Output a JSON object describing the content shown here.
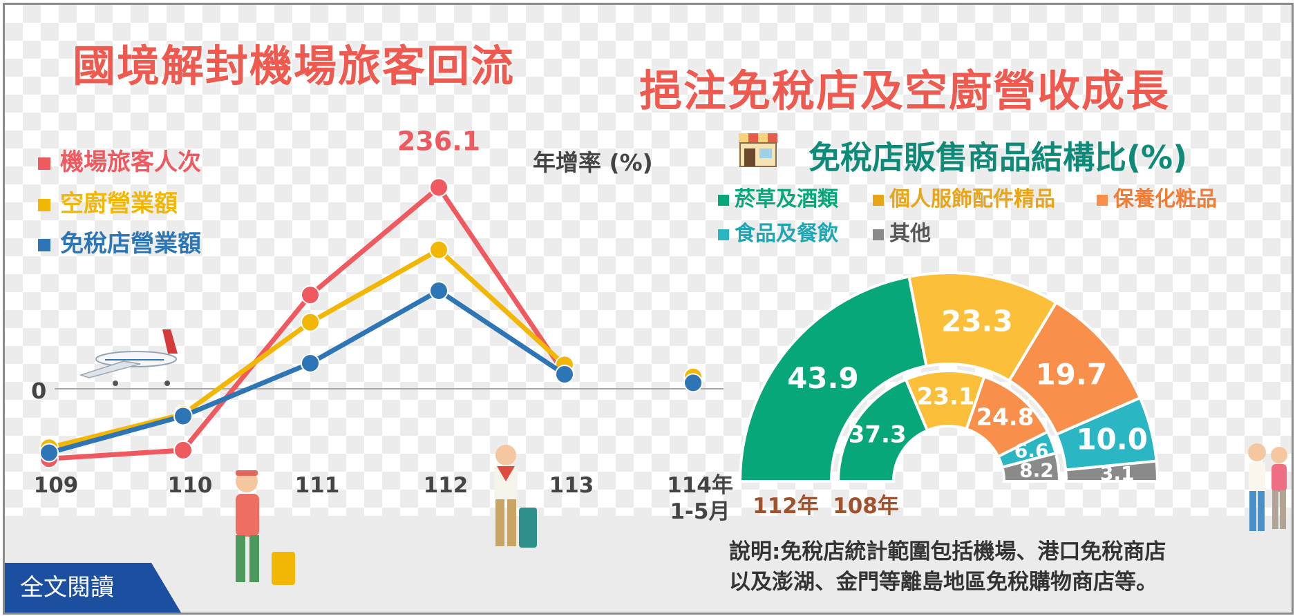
{
  "title_left": "國境解封機場旅客回流",
  "title_right": "挹注免稅店及空廚營收成長",
  "chart_data": [
    {
      "type": "line",
      "ylabel": "年增率 (%)",
      "zero_label": "0",
      "categories": [
        "109",
        "110",
        "111",
        "112",
        "113",
        "114年 1-5月"
      ],
      "series": [
        {
          "name": "機場旅客人次",
          "color": "#ee5a5f",
          "values": [
            -82,
            -72,
            110,
            236.1,
            18,
            null
          ]
        },
        {
          "name": "空廚營業額",
          "color": "#f2b705",
          "values": [
            -69,
            -30,
            78,
            163,
            28,
            14
          ]
        },
        {
          "name": "免稅店營業額",
          "color": "#2e75b6",
          "values": [
            -75,
            -32,
            30,
            115,
            17,
            7
          ]
        }
      ],
      "data_labels": [
        {
          "series": 0,
          "index": 3,
          "text": "236.1"
        }
      ]
    },
    {
      "type": "pie",
      "title": "免稅店販售商品結構比(%)",
      "categories": [
        "菸草及酒類",
        "個人服飾配件精品",
        "保養化粧品",
        "食品及餐飲",
        "其他"
      ],
      "colors": [
        "#07a77a",
        "#fbbf3a",
        "#f88f4a",
        "#2bb6c4",
        "#8a8a8a"
      ],
      "series": [
        {
          "name": "112年",
          "values": [
            43.9,
            23.3,
            19.7,
            10.0,
            3.1
          ]
        },
        {
          "name": "108年",
          "values": [
            37.3,
            23.1,
            24.8,
            6.6,
            8.2
          ]
        }
      ]
    }
  ],
  "note": {
    "line1": "說明:免稅店統計範圍包括機場、港口免稅商店",
    "line2": "以及澎湖、金門等離島地區免稅購物商店等。"
  },
  "read_button": "全文閱讀"
}
